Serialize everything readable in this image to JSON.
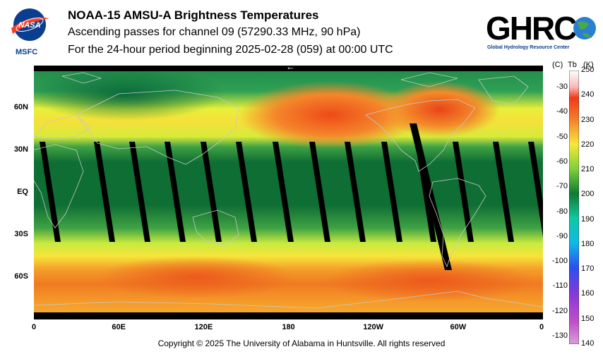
{
  "header": {
    "title": "NOAA-15 AMSU-A Brightness Temperatures",
    "subtitle": "Ascending passes for channel 09 (57290.33 MHz, 90 hPa)",
    "period": "For the 24-hour period beginning 2025-02-28 (059) at 00:00 UTC"
  },
  "logos": {
    "nasa_text": "NASA",
    "nasa_center": "MSFC",
    "ghrc_text": "GHRC",
    "ghrc_subtitle": "Global Hydrology Resource Center"
  },
  "map": {
    "lat_labels": [
      "60N",
      "30N",
      "EQ",
      "30S",
      "60S"
    ],
    "lon_labels": [
      "0",
      "60E",
      "120E",
      "180",
      "120W",
      "60W",
      "0"
    ],
    "lat_values": [
      60,
      30,
      0,
      -30,
      -60
    ],
    "lon_values": [
      0,
      60,
      120,
      180,
      240,
      300,
      360
    ],
    "lat_range": [
      -90,
      90
    ],
    "lon_range": [
      0,
      360
    ],
    "gap_color": "#000000",
    "coastline_color": "#c8c8c8",
    "direction_arrow": "←"
  },
  "colorbar": {
    "unit_celsius": "(C)",
    "unit_tb": "Tb",
    "unit_kelvin": "(K)",
    "kelvin_labels": [
      250,
      240,
      230,
      220,
      210,
      200,
      190,
      180,
      170,
      160,
      150,
      140
    ],
    "celsius_labels": [
      -30,
      -40,
      -50,
      -60,
      -70,
      -80,
      -90,
      -100,
      -110,
      -120,
      -130
    ],
    "kelvin_range": [
      140,
      250
    ]
  },
  "footer": {
    "copyright": "Copyright © 2025 The University of Alabama in Huntsville.  All rights reserved"
  }
}
